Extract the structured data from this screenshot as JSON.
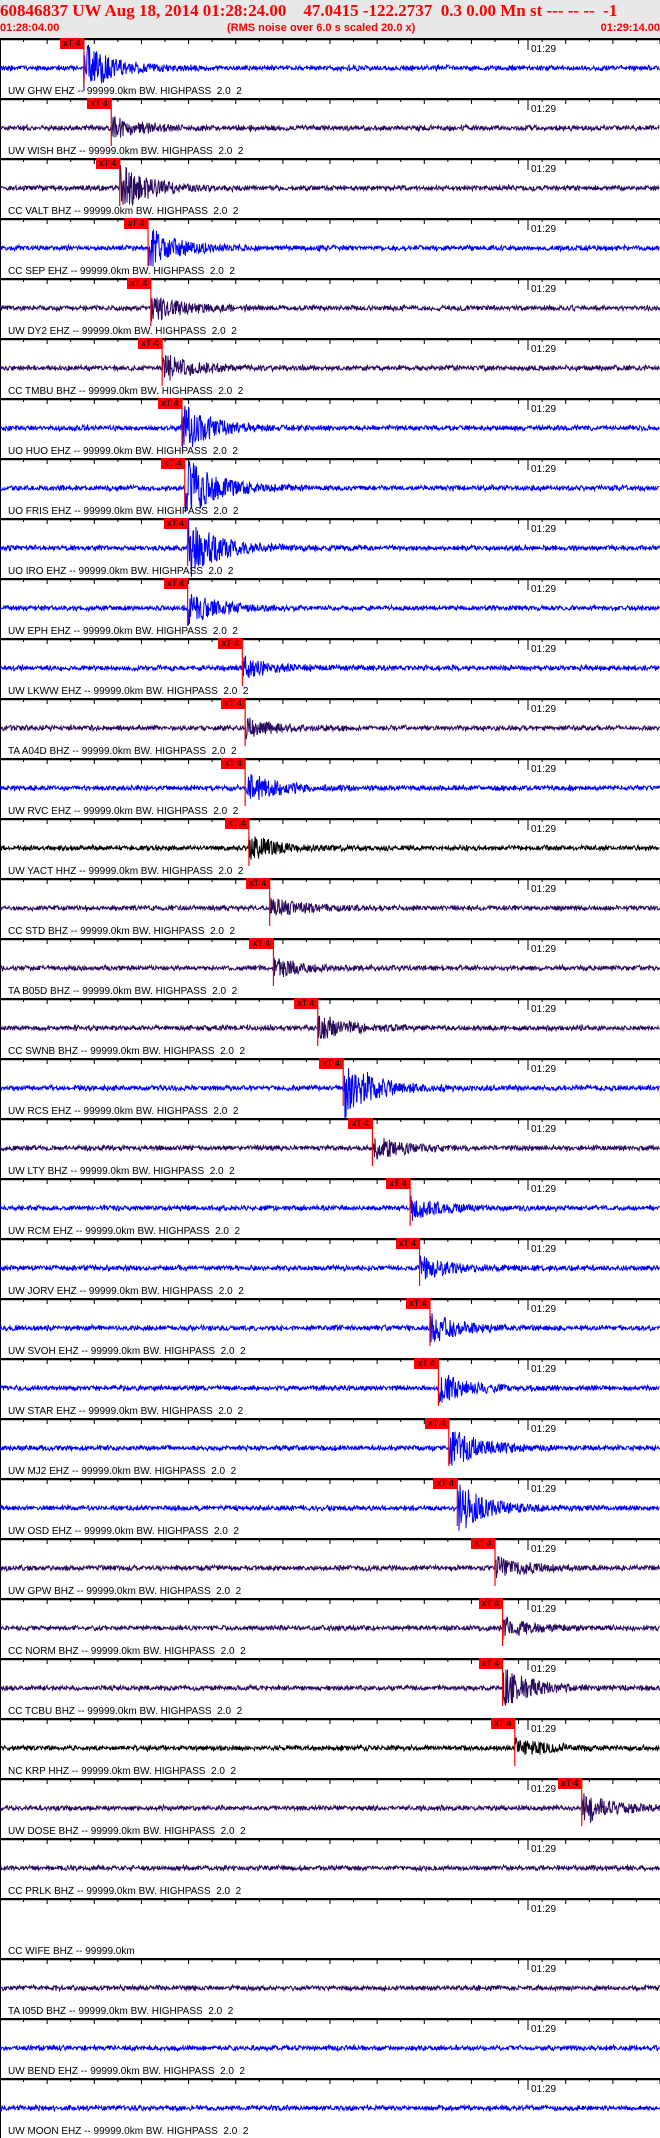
{
  "header": {
    "title": "60846837 UW Aug 18, 2014 01:28:24.00    47.0415 -122.2737  0.3 0.00 Mn st --- -- --  -1",
    "start_time": "01:28:04.00",
    "end_time": "01:29:14.00",
    "rms_note": "(RMS noise over 6.0 s scaled 20.0 x)",
    "color": "#ff0000"
  },
  "minute_label": "01:29",
  "pick_label": "xT 4",
  "colors": {
    "blue": "#0000ff",
    "purple": "#2a0a5e",
    "black": "#000000",
    "pick": "#ff0000"
  },
  "stations": [
    {
      "label": "UW GHW EHZ -- 99999.0km BW. HIGHPASS  2.0  2",
      "color": "blue",
      "pick": "01:28:12.9",
      "burst": 3
    },
    {
      "label": "UW WISH BHZ -- 99999.0km BW. HIGHPASS  2.0  2",
      "color": "purple",
      "pick": "01:28:15.8",
      "burst": 1.5
    },
    {
      "label": "CC VALT BHZ -- 99999.0km BW. HIGHPASS  2.0  2",
      "color": "purple",
      "pick": "01:28:16.7",
      "burst": 3
    },
    {
      "label": "CC SEP EHZ -- 99999.0km BW. HIGHPASS  2.0  2",
      "color": "blue",
      "pick": "01:28:19.7",
      "burst": 2.5
    },
    {
      "label": "UW DY2 EHZ -- 99999.0km BW. HIGHPASS  2.0  2",
      "color": "purple",
      "pick": "01:28:20.0",
      "burst": 1.8
    },
    {
      "label": "CC TMBU BHZ -- 99999.0km BW. HIGHPASS  2.0  2",
      "color": "purple",
      "pick": "01:28:21.2",
      "burst": 1.8
    },
    {
      "label": "UO HUO EHZ -- 99999.0km BW. HIGHPASS  2.0  2",
      "color": "blue",
      "pick": "01:28:23.3",
      "burst": 3
    },
    {
      "label": "UO FRIS EHZ -- 99999.0km BW. HIGHPASS  2.0  2",
      "color": "blue",
      "pick": "01:28:23.6",
      "burst": 4
    },
    {
      "label": "UO IRO EHZ -- 99999.0km BW. HIGHPASS  2.0  2",
      "color": "blue",
      "pick": "01:28:23.9",
      "burst": 4
    },
    {
      "label": "UW EPH EHZ -- 99999.0km BW. HIGHPASS  2.0  2",
      "color": "blue",
      "pick": "01:28:23.9",
      "burst": 2
    },
    {
      "label": "UW LKWW EHZ -- 99999.0km BW. HIGHPASS  2.0  2",
      "color": "blue",
      "pick": "01:28:29.7",
      "burst": 1.3
    },
    {
      "label": "TA A04D BHZ -- 99999.0km BW. HIGHPASS  2.0  2",
      "color": "purple",
      "pick": "01:28:30.0",
      "burst": 1.2
    },
    {
      "label": "UW RVC EHZ -- 99999.0km BW. HIGHPASS  2.0  2",
      "color": "blue",
      "pick": "01:28:30.0",
      "burst": 2
    },
    {
      "label": "UW YACT HHZ -- 99999.0km BW. HIGHPASS  2.0  2",
      "color": "black",
      "pick": "01:28:30.4",
      "burst": 1.6
    },
    {
      "label": "CC STD BHZ -- 99999.0km BW. HIGHPASS  2.0  2",
      "color": "purple",
      "pick": "01:28:32.6",
      "burst": 1.3
    },
    {
      "label": "TA B05D BHZ -- 99999.0km BW. HIGHPASS  2.0  2",
      "color": "purple",
      "pick": "01:28:33.0",
      "burst": 1.2
    },
    {
      "label": "CC SWNB BHZ -- 99999.0km BW. HIGHPASS  2.0  2",
      "color": "purple",
      "pick": "01:28:37.7",
      "burst": 1.8
    },
    {
      "label": "UW RCS EHZ -- 99999.0km BW. HIGHPASS  2.0  2",
      "color": "blue",
      "pick": "01:28:40.4",
      "burst": 4
    },
    {
      "label": "UW LTY BHZ -- 99999.0km BW. HIGHPASS  2.0  2",
      "color": "purple",
      "pick": "01:28:43.5",
      "burst": 1.5
    },
    {
      "label": "UW RCM EHZ -- 99999.0km BW. HIGHPASS  2.0  2",
      "color": "blue",
      "pick": "01:28:47.5",
      "burst": 1.5
    },
    {
      "label": "UW JORV EHZ -- 99999.0km BW. HIGHPASS  2.0  2",
      "color": "blue",
      "pick": "01:28:48.5",
      "burst": 1.5
    },
    {
      "label": "UW SVOH EHZ -- 99999.0km BW. HIGHPASS  2.0  2",
      "color": "blue",
      "pick": "01:28:49.6",
      "burst": 1.8
    },
    {
      "label": "UW STAR EHZ -- 99999.0km BW. HIGHPASS  2.0  2",
      "color": "blue",
      "pick": "01:28:50.5",
      "burst": 1.8
    },
    {
      "label": "UW MJ2 EHZ -- 99999.0km BW. HIGHPASS  2.0  2",
      "color": "blue",
      "pick": "01:28:51.6",
      "burst": 2.5
    },
    {
      "label": "UW OSD EHZ -- 99999.0km BW. HIGHPASS  2.0  2",
      "color": "blue",
      "pick": "01:28:52.5",
      "burst": 3
    },
    {
      "label": "UW GPW BHZ -- 99999.0km BW. HIGHPASS  2.0  2",
      "color": "purple",
      "pick": "01:28:56.5",
      "burst": 1.4
    },
    {
      "label": "CC NORM BHZ -- 99999.0km BW. HIGHPASS  2.0  2",
      "color": "purple",
      "pick": "01:28:57.3",
      "burst": 1.2
    },
    {
      "label": "CC TCBU BHZ -- 99999.0km BW. HIGHPASS  2.0  2",
      "color": "purple",
      "pick": "01:28:57.3",
      "burst": 2.5
    },
    {
      "label": "NC KRP HHZ -- 99999.0km BW. HIGHPASS  2.0  2",
      "color": "black",
      "pick": "01:28:58.6",
      "burst": 1.3
    },
    {
      "label": "UW DOSE BHZ -- 99999.0km BW. HIGHPASS  2.0  2",
      "color": "purple",
      "pick": "01:29:05.7",
      "burst": 2
    },
    {
      "label": "CC PRLK BHZ -- 99999.0km BW. HIGHPASS  2.0  2",
      "color": "purple",
      "pick": null,
      "burst": 0
    },
    {
      "label": "CC WIFE BHZ -- 99999.0km",
      "color": null,
      "pick": null,
      "burst": 0
    },
    {
      "label": "TA I05D BHZ -- 99999.0km BW. HIGHPASS  2.0  2",
      "color": "purple",
      "pick": null,
      "burst": 0
    },
    {
      "label": "UW BEND EHZ -- 99999.0km BW. HIGHPASS  2.0  2",
      "color": "blue",
      "pick": null,
      "burst": 0
    },
    {
      "label": "UW MOON EHZ -- 99999.0km BW. HIGHPASS  2.0  2",
      "color": "blue",
      "pick": null,
      "burst": 0
    }
  ]
}
